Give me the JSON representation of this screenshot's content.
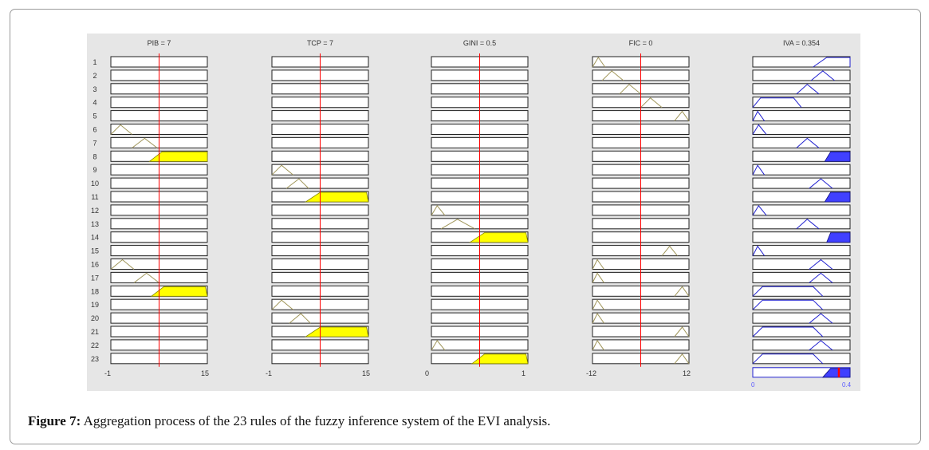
{
  "figure": {
    "columns": [
      {
        "title": "PIB = 7",
        "tick_min": "-1",
        "tick_max": "15",
        "min": -1,
        "max": 15,
        "value": 7,
        "kind": "input"
      },
      {
        "title": "TCP = 7",
        "tick_min": "-1",
        "tick_max": "15",
        "min": -1,
        "max": 15,
        "value": 7,
        "kind": "input"
      },
      {
        "title": "GINI = 0.5",
        "tick_min": "0",
        "tick_max": "1",
        "min": 0,
        "max": 1,
        "value": 0.5,
        "kind": "input"
      },
      {
        "title": "FIC = 0",
        "tick_min": "-12",
        "tick_max": "12",
        "min": -12,
        "max": 12,
        "value": 0,
        "kind": "input"
      },
      {
        "title": "IVA = 0.354",
        "tick_min": "0",
        "tick_max": "0.4",
        "min": 0,
        "max": 0.4,
        "value": 0.354,
        "kind": "output"
      }
    ],
    "rule_labels": [
      "1",
      "2",
      "3",
      "4",
      "5",
      "6",
      "7",
      "8",
      "9",
      "10",
      "11",
      "12",
      "13",
      "14",
      "15",
      "16",
      "17",
      "18",
      "19",
      "20",
      "21",
      "22",
      "23"
    ],
    "active_rules": [
      8,
      11,
      14,
      18,
      21,
      23
    ],
    "colors": {
      "input_fill": "#ffff00",
      "output_fill": "#4040ff",
      "value_line": "#ff0000",
      "mf_line": "#a0965a",
      "output_mf_line": "#2020d0",
      "background": "#e6e6e6"
    }
  },
  "caption": {
    "label": "Figure 7:",
    "text": "Aggregation process of the 23 rules of the fuzzy inference system of the EVI analysis."
  }
}
